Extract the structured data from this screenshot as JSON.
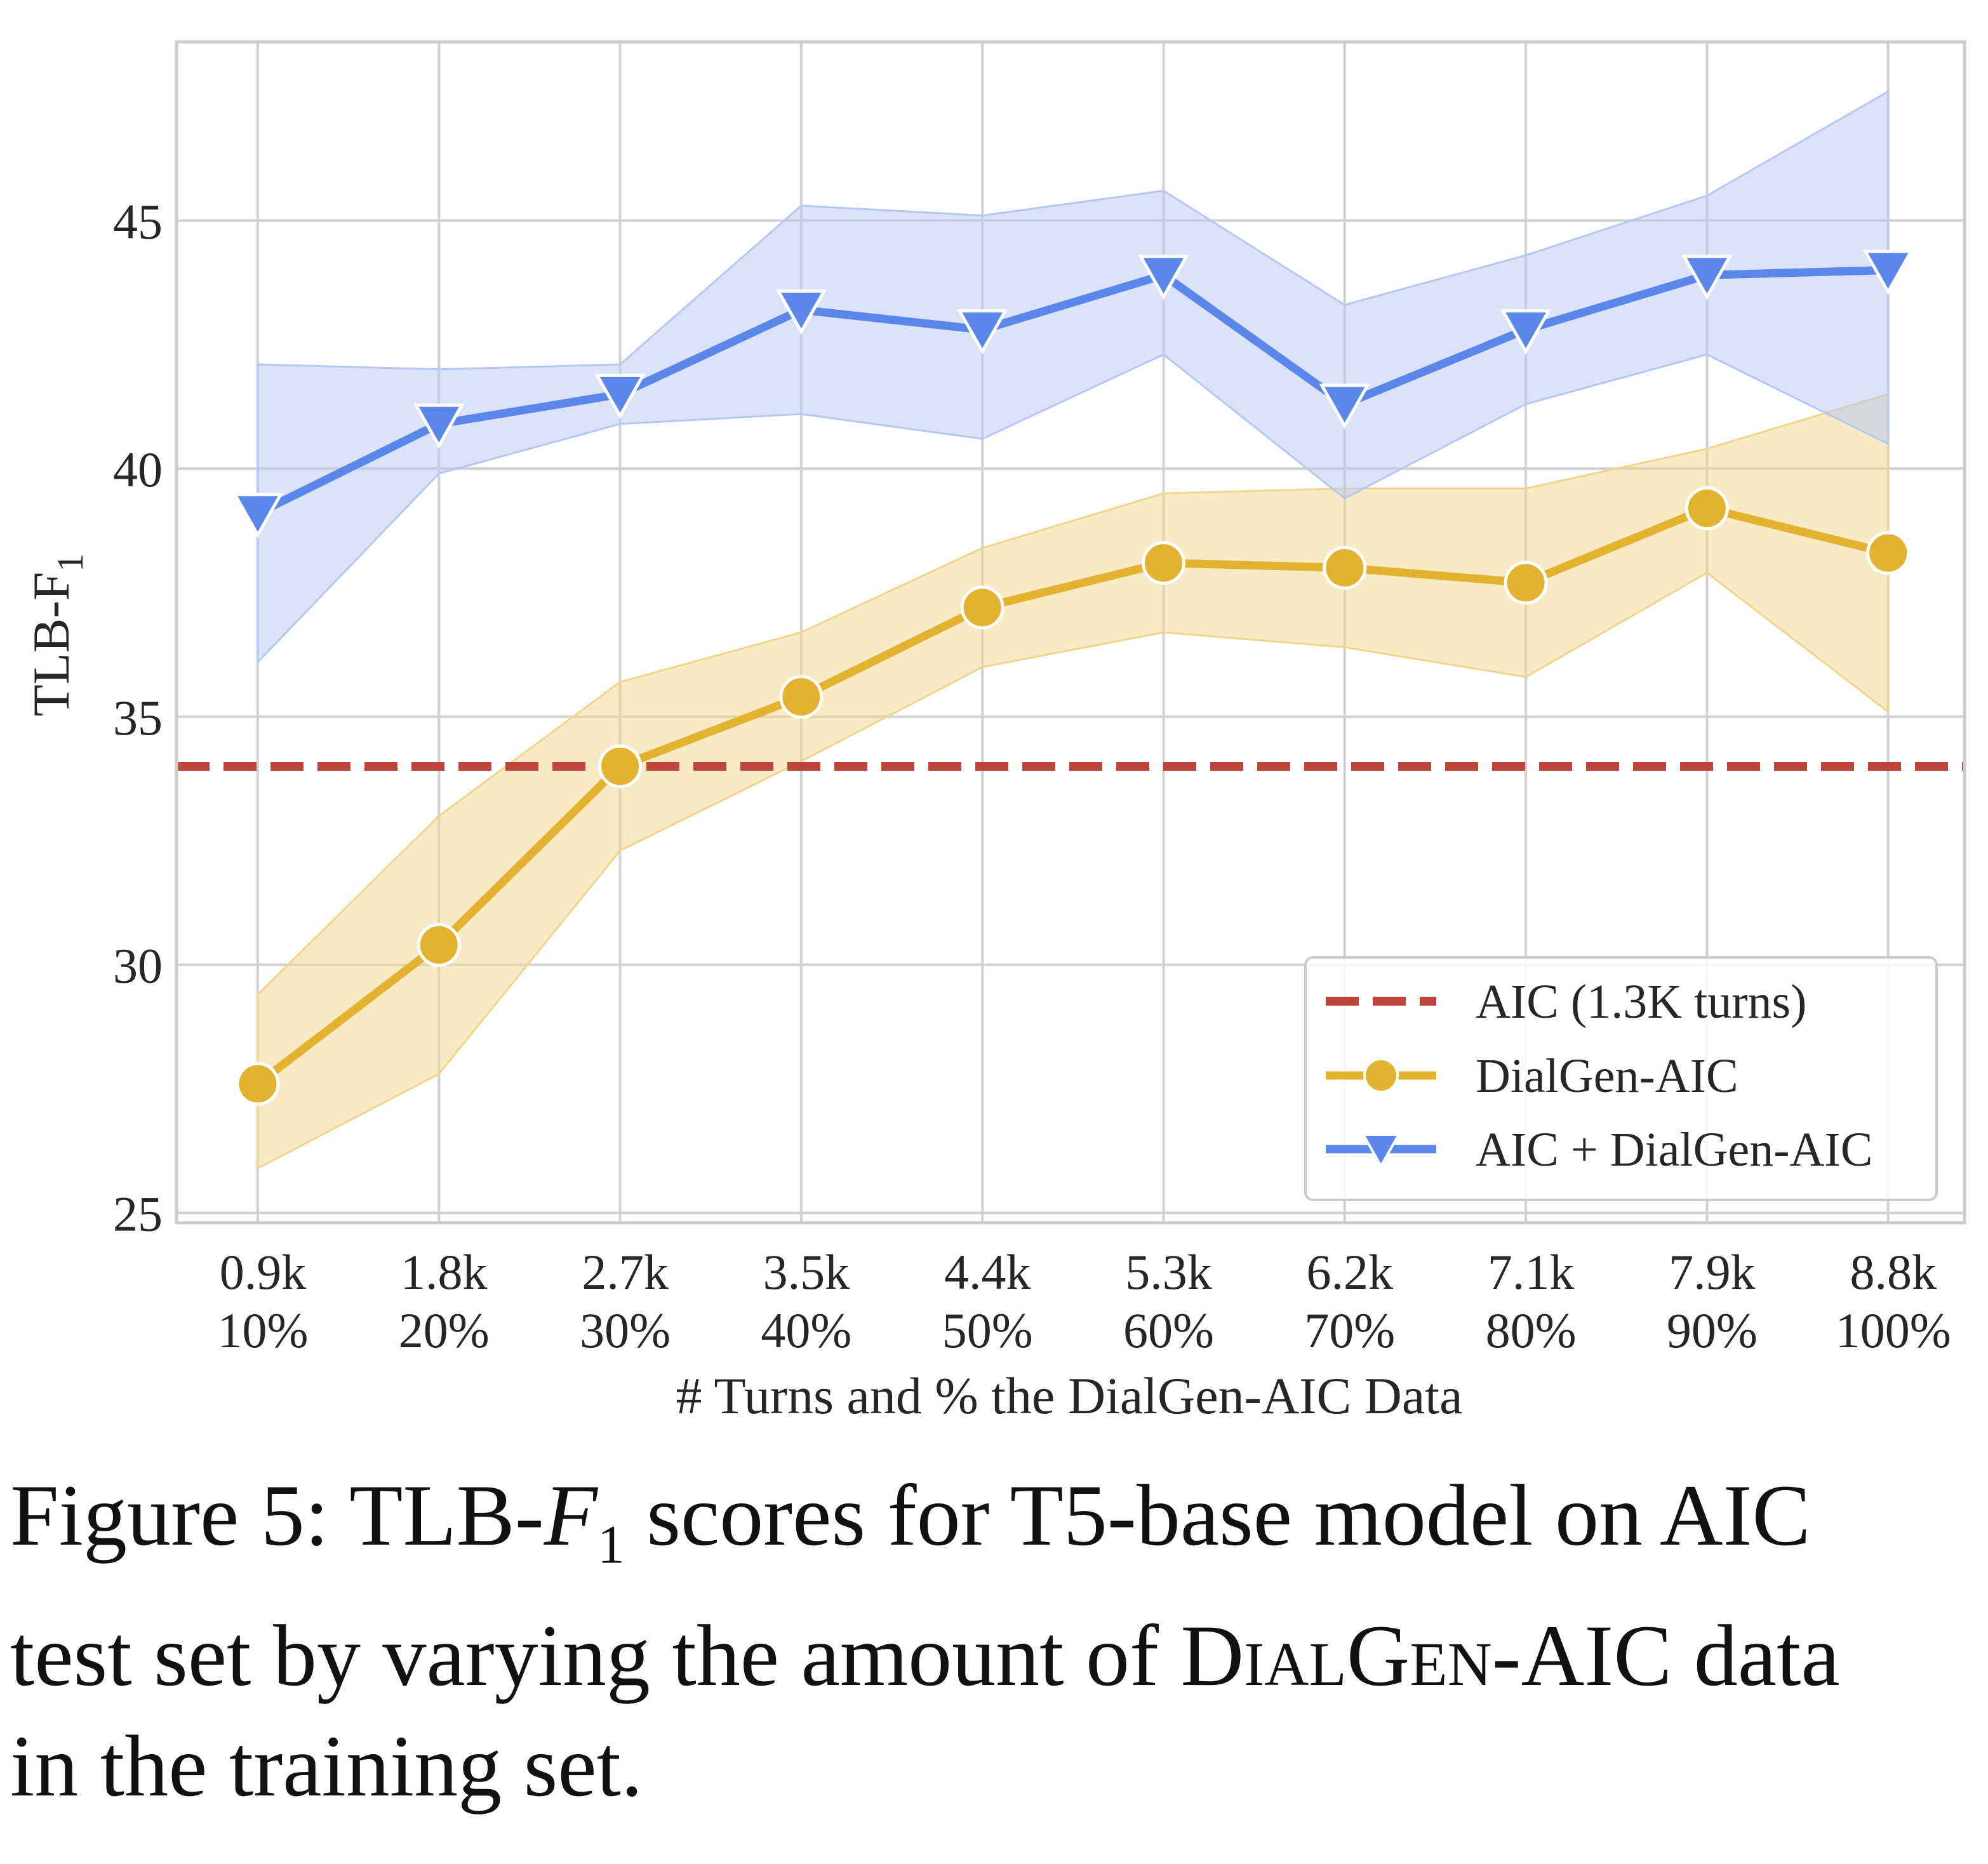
{
  "chart_data": {
    "type": "line",
    "ylabel": "TLB-F",
    "ylabel_sub": "1",
    "xlabel": "# Turns and % the DialGen-AIC Data",
    "ylim": [
      24.8,
      48.6
    ],
    "yticks": [
      25,
      30,
      35,
      40,
      45
    ],
    "grid": true,
    "legend_position": "lower-right",
    "categories": [
      {
        "turns": "0.9k",
        "pct": "10%"
      },
      {
        "turns": "1.8k",
        "pct": "20%"
      },
      {
        "turns": "2.7k",
        "pct": "30%"
      },
      {
        "turns": "3.5k",
        "pct": "40%"
      },
      {
        "turns": "4.4k",
        "pct": "50%"
      },
      {
        "turns": "5.3k",
        "pct": "60%"
      },
      {
        "turns": "6.2k",
        "pct": "70%"
      },
      {
        "turns": "7.1k",
        "pct": "80%"
      },
      {
        "turns": "7.9k",
        "pct": "90%"
      },
      {
        "turns": "8.8k",
        "pct": "100%"
      }
    ],
    "series": [
      {
        "name": "AIC (1.3K turns)",
        "kind": "hline",
        "value": 34.0,
        "color": "#c0453d"
      },
      {
        "name": "DialGen-AIC",
        "marker": "circle",
        "color": "#e3b22f",
        "band_color": "#f0d68c",
        "values": [
          27.6,
          30.4,
          34.0,
          35.4,
          37.2,
          38.1,
          38.0,
          37.7,
          39.2,
          38.3
        ],
        "lower": [
          25.9,
          27.8,
          32.3,
          34.1,
          36.0,
          36.7,
          36.4,
          35.8,
          37.9,
          35.1
        ],
        "upper": [
          29.4,
          33.0,
          35.7,
          36.7,
          38.4,
          39.5,
          39.6,
          39.6,
          40.4,
          41.5
        ]
      },
      {
        "name": "AIC + DialGen-AIC",
        "marker": "triangle-down",
        "color": "#5b87ea",
        "band_color": "#b5c8f2",
        "values": [
          39.1,
          40.9,
          41.5,
          43.2,
          42.8,
          43.9,
          41.3,
          42.8,
          43.9,
          44.0
        ],
        "lower": [
          36.1,
          39.9,
          40.9,
          41.1,
          40.6,
          42.3,
          39.4,
          41.3,
          42.3,
          40.5
        ],
        "upper": [
          42.1,
          42.0,
          42.1,
          45.3,
          45.1,
          45.6,
          43.3,
          44.3,
          45.5,
          47.6
        ]
      }
    ]
  },
  "caption": {
    "line1_prefix": "Figure 5: TLB-",
    "line1_var": "F",
    "line1_sub": "1",
    "line1_suffix": " scores for T5-base model on AIC",
    "line2_prefix": "test set by varying the amount of ",
    "line2_sc": "DialGen",
    "line2_suffix": "-AIC data",
    "line3": "in the training set."
  }
}
